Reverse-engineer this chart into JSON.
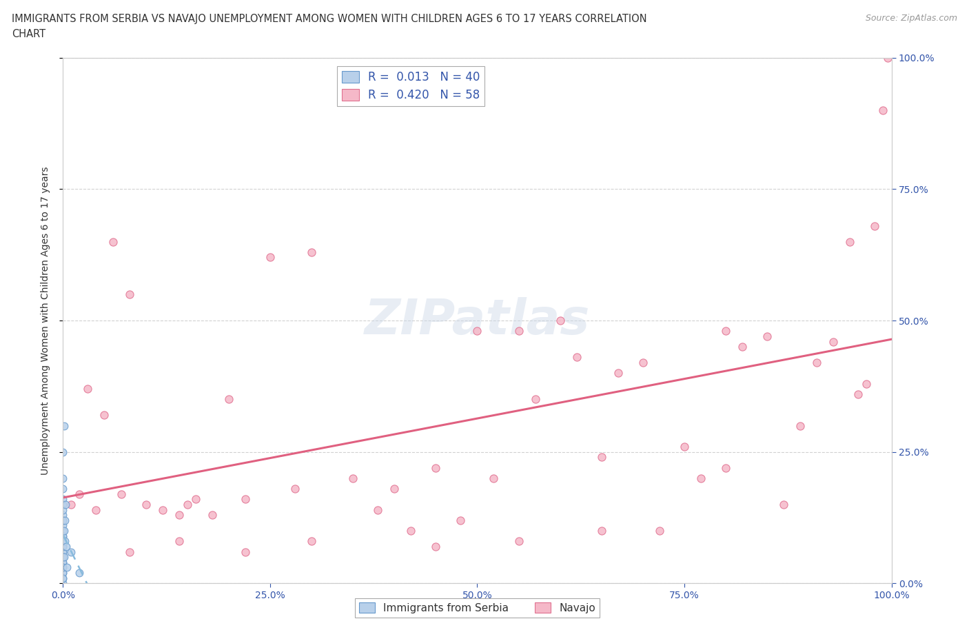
{
  "title_line1": "IMMIGRANTS FROM SERBIA VS NAVAJO UNEMPLOYMENT AMONG WOMEN WITH CHILDREN AGES 6 TO 17 YEARS CORRELATION",
  "title_line2": "CHART",
  "source_text": "Source: ZipAtlas.com",
  "ylabel": "Unemployment Among Women with Children Ages 6 to 17 years",
  "bg_color": "#ffffff",
  "plot_bg_color": "#ffffff",
  "grid_color": "#cccccc",
  "watermark": "ZIPatlas",
  "serbia_color": "#b8d0ea",
  "serbia_edge_color": "#6699cc",
  "navajo_color": "#f5b8c8",
  "navajo_edge_color": "#e07090",
  "trendline_serbia_color": "#88bbdd",
  "trendline_navajo_color": "#e06080",
  "serbia_R": 0.013,
  "serbia_N": 40,
  "navajo_R": 0.42,
  "navajo_N": 58,
  "serbia_points_x": [
    0.0,
    0.0,
    0.0,
    0.0,
    0.0,
    0.0,
    0.0,
    0.0,
    0.0,
    0.0,
    0.0,
    0.0,
    0.0,
    0.0,
    0.0,
    0.0,
    0.0,
    0.0,
    0.0,
    0.0,
    0.0,
    0.0,
    0.0,
    0.0,
    0.0,
    0.0,
    0.0,
    0.0,
    0.0,
    0.0,
    0.001,
    0.001,
    0.001,
    0.002,
    0.002,
    0.003,
    0.004,
    0.005,
    0.01,
    0.02
  ],
  "serbia_points_y": [
    0.0,
    0.01,
    0.02,
    0.03,
    0.04,
    0.05,
    0.06,
    0.07,
    0.08,
    0.09,
    0.1,
    0.11,
    0.12,
    0.13,
    0.02,
    0.04,
    0.06,
    0.08,
    0.15,
    0.05,
    0.07,
    0.09,
    0.03,
    0.12,
    0.01,
    0.14,
    0.16,
    0.2,
    0.18,
    0.25,
    0.3,
    0.1,
    0.05,
    0.08,
    0.12,
    0.15,
    0.07,
    0.03,
    0.06,
    0.02
  ],
  "navajo_points_x": [
    0.01,
    0.02,
    0.03,
    0.04,
    0.05,
    0.06,
    0.07,
    0.08,
    0.1,
    0.12,
    0.14,
    0.15,
    0.16,
    0.18,
    0.2,
    0.22,
    0.25,
    0.28,
    0.3,
    0.35,
    0.38,
    0.4,
    0.42,
    0.45,
    0.48,
    0.5,
    0.52,
    0.55,
    0.57,
    0.6,
    0.62,
    0.65,
    0.67,
    0.7,
    0.72,
    0.75,
    0.77,
    0.8,
    0.82,
    0.85,
    0.87,
    0.89,
    0.91,
    0.93,
    0.95,
    0.96,
    0.97,
    0.98,
    0.99,
    0.995,
    0.08,
    0.14,
    0.22,
    0.3,
    0.45,
    0.55,
    0.65,
    0.8
  ],
  "navajo_points_y": [
    0.15,
    0.17,
    0.37,
    0.14,
    0.32,
    0.65,
    0.17,
    0.55,
    0.15,
    0.14,
    0.13,
    0.15,
    0.16,
    0.13,
    0.35,
    0.16,
    0.62,
    0.18,
    0.63,
    0.2,
    0.14,
    0.18,
    0.1,
    0.22,
    0.12,
    0.48,
    0.2,
    0.48,
    0.35,
    0.5,
    0.43,
    0.24,
    0.4,
    0.42,
    0.1,
    0.26,
    0.2,
    0.22,
    0.45,
    0.47,
    0.15,
    0.3,
    0.42,
    0.46,
    0.65,
    0.36,
    0.38,
    0.68,
    0.9,
    1.0,
    0.06,
    0.08,
    0.06,
    0.08,
    0.07,
    0.08,
    0.1,
    0.48
  ],
  "axis_color": "#3355aa",
  "tick_color": "#3355aa",
  "title_color": "#333333",
  "legend_r_color": "#3355aa",
  "xlim": [
    0.0,
    1.0
  ],
  "ylim": [
    0.0,
    1.0
  ],
  "xticks": [
    0.0,
    0.25,
    0.5,
    0.75,
    1.0
  ],
  "yticks": [
    0.0,
    0.25,
    0.5,
    0.75,
    1.0
  ],
  "xticklabels": [
    "0.0%",
    "25.0%",
    "50.0%",
    "75.0%",
    "100.0%"
  ],
  "yticklabels": [
    "0.0%",
    "25.0%",
    "50.0%",
    "75.0%",
    "100.0%"
  ]
}
